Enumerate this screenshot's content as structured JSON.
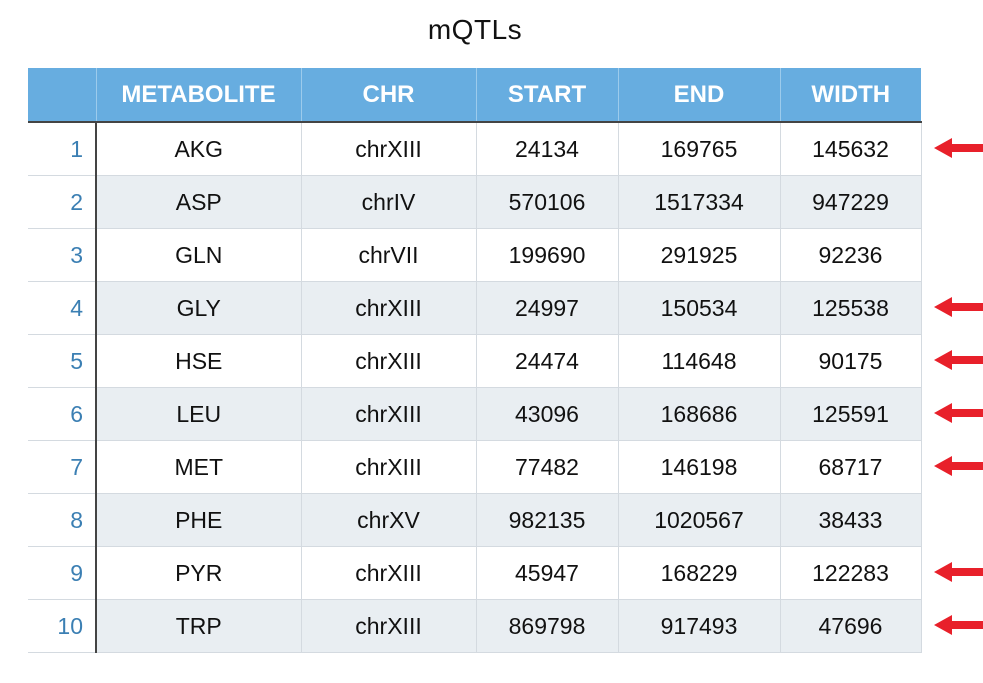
{
  "chart_data": {
    "type": "table",
    "title": "mQTLs",
    "columns": [
      "",
      "METABOLITE",
      "CHR",
      "START",
      "END",
      "WIDTH"
    ],
    "rows": [
      [
        "1",
        "AKG",
        "chrXIII",
        "24134",
        "169765",
        "145632"
      ],
      [
        "2",
        "ASP",
        "chrIV",
        "570106",
        "1517334",
        "947229"
      ],
      [
        "3",
        "GLN",
        "chrVII",
        "199690",
        "291925",
        "92236"
      ],
      [
        "4",
        "GLY",
        "chrXIII",
        "24997",
        "150534",
        "125538"
      ],
      [
        "5",
        "HSE",
        "chrXIII",
        "24474",
        "114648",
        "90175"
      ],
      [
        "6",
        "LEU",
        "chrXIII",
        "43096",
        "168686",
        "125591"
      ],
      [
        "7",
        "MET",
        "chrXIII",
        "77482",
        "146198",
        "68717"
      ],
      [
        "8",
        "PHE",
        "chrXV",
        "982135",
        "1020567",
        "38433"
      ],
      [
        "9",
        "PYR",
        "chrXIII",
        "45947",
        "168229",
        "122283"
      ],
      [
        "10",
        "TRP",
        "chrXIII",
        "869798",
        "917493",
        "47696"
      ]
    ],
    "highlighted_rows": [
      true,
      false,
      false,
      true,
      true,
      true,
      true,
      false,
      true,
      true
    ]
  },
  "colors": {
    "header_bg": "#67ade0",
    "header_text": "#ffffff",
    "row_alt_bg": "#e9eef2",
    "index_text": "#3b7fb3",
    "arrow": "#e8202a"
  },
  "icons": {
    "row_marker": "left-arrow-icon"
  }
}
